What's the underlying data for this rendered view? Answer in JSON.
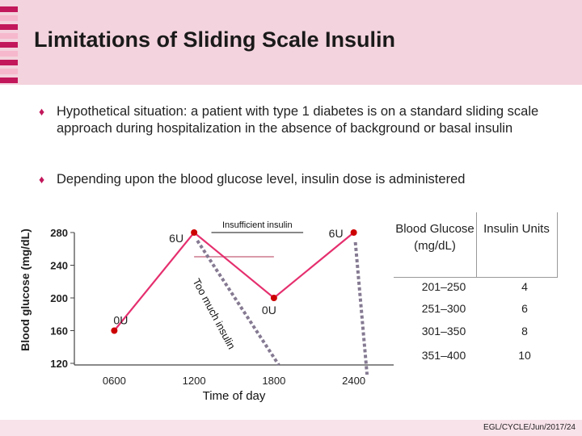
{
  "slide": {
    "title": "Limitations of Sliding Scale Insulin",
    "bullets": [
      "Hypothetical situation: a patient with type 1 diabetes is on a standard  sliding scale approach during hospitalization in the absence of background or basal insulin",
      "Depending upon the blood glucose level, insulin dose is administered"
    ],
    "footer": "EGL/CYCLE/Jun/2017/24",
    "colors": {
      "accent": "#c2175b",
      "line": "#e52f6e",
      "dotted": "#857a92",
      "point": "#cc0000"
    }
  },
  "chart_data": {
    "type": "line",
    "title": "",
    "xlabel": "Time of day",
    "ylabel": "Blood glucose (mg/dL)",
    "x": [
      "0600",
      "1200",
      "1800",
      "2400"
    ],
    "y_ticks": [
      "280",
      "240",
      "200",
      "160",
      "120"
    ],
    "ylim": [
      120,
      280
    ],
    "series": [
      {
        "name": "Blood glucose",
        "x": [
          6,
          12,
          18,
          24
        ],
        "values": [
          160,
          280,
          200,
          280
        ]
      }
    ],
    "reference_lines": [
      {
        "label": "Insufficient insulin",
        "y": 280
      },
      {
        "label": "Too much insulin",
        "y": 120
      }
    ],
    "point_labels": [
      "0U",
      "6U",
      "0U",
      "6U"
    ],
    "annotations": {
      "insufficient": "Insufficient insulin",
      "too_much": "Too much insulin"
    }
  },
  "table": {
    "headers": [
      "Blood Glucose (mg/dL)",
      "Insulin Units"
    ],
    "rows": [
      [
        "201–250",
        "4"
      ],
      [
        "251–300",
        "6"
      ],
      [
        "301–350",
        "8"
      ],
      [
        "351–400",
        "10"
      ]
    ]
  }
}
